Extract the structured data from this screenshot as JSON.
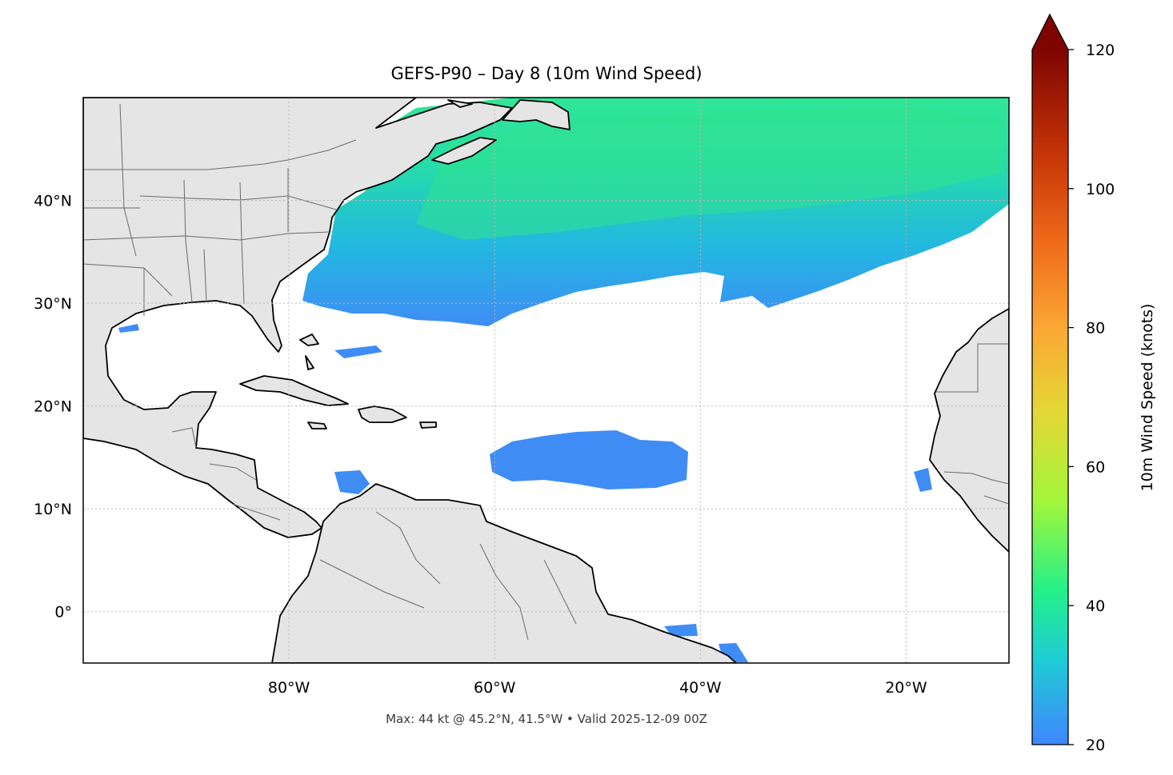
{
  "title": "GEFS-P90 – Day 8 (10m Wind Speed)",
  "footer": "Max: 44 kt @ 45.2°N, 41.5°W • Valid 2025-12-09 00Z",
  "map": {
    "lon_range": [
      -100,
      -10
    ],
    "lat_range": [
      -5,
      50
    ],
    "lat_ticks": [
      {
        "value": 40,
        "label": "40°N"
      },
      {
        "value": 30,
        "label": "30°N"
      },
      {
        "value": 20,
        "label": "20°N"
      },
      {
        "value": 10,
        "label": "10°N"
      },
      {
        "value": 0,
        "label": "0°"
      }
    ],
    "lon_ticks": [
      {
        "value": -80,
        "label": "80°W"
      },
      {
        "value": -60,
        "label": "60°W"
      },
      {
        "value": -40,
        "label": "40°W"
      },
      {
        "value": -20,
        "label": "20°W"
      }
    ],
    "gridlines": true,
    "land_color": "#e5e5e5",
    "max_marker": {
      "lat": 45.2,
      "lon": -41.5,
      "speed_kt": 44
    }
  },
  "colorbar": {
    "label": "10m Wind Speed (knots)",
    "ticks": [
      120,
      100,
      80,
      60,
      40,
      20
    ],
    "range": [
      20,
      120
    ],
    "extend": "max",
    "colors": [
      "#3f86fe",
      "#1fcbd6",
      "#22f08a",
      "#a3f63a",
      "#e4d735",
      "#fba735",
      "#f06b1a",
      "#c63407",
      "#7e0502"
    ]
  },
  "wind_field_colors": {
    "low": "#3f8cf5",
    "mid": "#1ec8d2",
    "high": "#35e88c"
  }
}
